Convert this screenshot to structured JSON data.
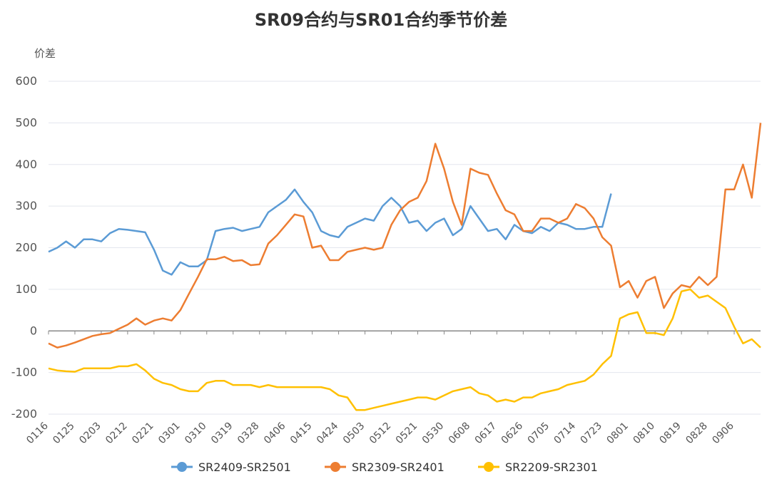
{
  "chart_data": {
    "type": "line",
    "title": "SR09合约与SR01合约季节价差",
    "y_label": "价差",
    "categories": [
      "0116",
      null,
      null,
      "0125",
      null,
      null,
      "0203",
      null,
      null,
      "0212",
      null,
      null,
      "0221",
      null,
      null,
      "0301",
      null,
      null,
      "0310",
      null,
      null,
      "0319",
      null,
      null,
      "0328",
      null,
      null,
      "0406",
      null,
      null,
      "0415",
      null,
      null,
      "0424",
      null,
      null,
      "0503",
      null,
      null,
      "0512",
      null,
      null,
      "0521",
      null,
      null,
      "0530",
      null,
      null,
      "0608",
      null,
      null,
      "0617",
      null,
      null,
      "0626",
      null,
      null,
      "0705",
      null,
      null,
      "0714",
      null,
      null,
      "0723",
      null,
      null,
      "0801",
      null,
      null,
      "0810",
      null,
      null,
      "0819",
      null,
      null,
      "0828",
      null,
      null,
      "0906",
      null,
      null,
      null
    ],
    "series": [
      {
        "name": "SR2409-SR2501",
        "color": "#5b9bd5",
        "values": [
          190,
          200,
          215,
          200,
          220,
          220,
          215,
          235,
          245,
          243,
          240,
          237,
          195,
          145,
          135,
          165,
          155,
          155,
          170,
          240,
          245,
          248,
          240,
          245,
          250,
          285,
          300,
          315,
          340,
          310,
          285,
          240,
          230,
          225,
          250,
          260,
          270,
          265,
          300,
          320,
          300,
          260,
          265,
          240,
          260,
          270,
          230,
          245,
          300,
          270,
          240,
          245,
          220,
          255,
          240,
          235,
          250,
          240,
          260,
          255,
          245,
          245,
          250,
          250,
          330,
          null,
          null,
          null,
          null,
          null,
          null,
          null,
          null,
          null,
          null,
          null,
          null,
          null,
          null,
          null,
          null,
          null
        ]
      },
      {
        "name": "SR2309-SR2401",
        "color": "#ed7d31",
        "values": [
          -30,
          -40,
          -35,
          -28,
          -20,
          -12,
          -8,
          -5,
          5,
          15,
          30,
          15,
          25,
          30,
          25,
          50,
          90,
          130,
          172,
          172,
          178,
          168,
          170,
          158,
          160,
          210,
          230,
          255,
          280,
          275,
          200,
          205,
          170,
          170,
          190,
          195,
          200,
          195,
          200,
          255,
          290,
          310,
          320,
          360,
          450,
          390,
          310,
          255,
          390,
          380,
          375,
          330,
          290,
          280,
          240,
          240,
          270,
          270,
          260,
          270,
          305,
          295,
          270,
          225,
          205,
          105,
          120,
          80,
          120,
          130,
          55,
          90,
          110,
          105,
          130,
          110,
          130,
          340,
          340,
          400,
          320,
          500
        ]
      },
      {
        "name": "SR2209-SR2301",
        "color": "#ffc000",
        "values": [
          -90,
          -95,
          -97,
          -98,
          -90,
          -90,
          -90,
          -90,
          -85,
          -85,
          -80,
          -95,
          -115,
          -125,
          -130,
          -140,
          -145,
          -145,
          -125,
          -120,
          -120,
          -130,
          -130,
          -130,
          -135,
          -130,
          -135,
          -135,
          -135,
          -135,
          -135,
          -135,
          -140,
          -155,
          -160,
          -190,
          -190,
          -185,
          -180,
          -175,
          -170,
          -165,
          -160,
          -160,
          -165,
          -155,
          -145,
          -140,
          -135,
          -150,
          -155,
          -170,
          -165,
          -170,
          -160,
          -160,
          -150,
          -145,
          -140,
          -130,
          -125,
          -120,
          -105,
          -80,
          -60,
          30,
          40,
          45,
          -5,
          -5,
          -10,
          30,
          95,
          100,
          80,
          85,
          70,
          55,
          10,
          -30,
          -20,
          -40
        ]
      }
    ],
    "ylim": [
      -200,
      600
    ],
    "yticks": [
      -200,
      -100,
      0,
      100,
      200,
      300,
      400,
      500,
      600
    ],
    "grid": true
  }
}
